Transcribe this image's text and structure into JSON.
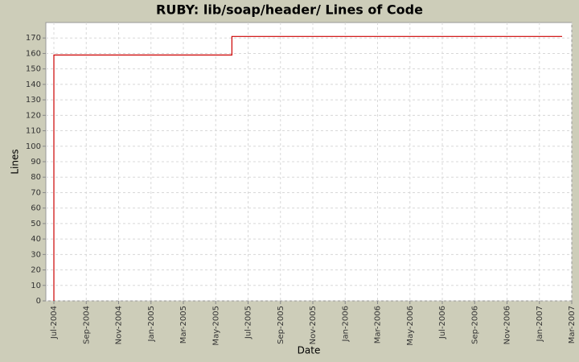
{
  "chart_data": {
    "type": "line",
    "title": "RUBY: lib/soap/header/ Lines of Code",
    "x_label": "Date",
    "y_label": "Lines",
    "step": true,
    "grid": true,
    "x": [
      "2004-07",
      "2004-07",
      "2005-06",
      "2007-02"
    ],
    "series": [
      {
        "name": "Lines",
        "color": "#cc0000",
        "values": [
          0,
          159,
          171,
          171
        ]
      }
    ],
    "xlim": [
      "2004-07",
      "2007-03"
    ],
    "xticks": [
      {
        "value": "2004-07",
        "label": "Jul-2004"
      },
      {
        "value": "2004-09",
        "label": "Sep-2004"
      },
      {
        "value": "2004-11",
        "label": "Nov-2004"
      },
      {
        "value": "2005-01",
        "label": "Jan-2005"
      },
      {
        "value": "2005-03",
        "label": "Mar-2005"
      },
      {
        "value": "2005-05",
        "label": "May-2005"
      },
      {
        "value": "2005-07",
        "label": "Jul-2005"
      },
      {
        "value": "2005-09",
        "label": "Sep-2005"
      },
      {
        "value": "2005-11",
        "label": "Nov-2005"
      },
      {
        "value": "2006-01",
        "label": "Jan-2006"
      },
      {
        "value": "2006-03",
        "label": "Mar-2006"
      },
      {
        "value": "2006-05",
        "label": "May-2006"
      },
      {
        "value": "2006-07",
        "label": "Jul-2006"
      },
      {
        "value": "2006-09",
        "label": "Sep-2006"
      },
      {
        "value": "2006-11",
        "label": "Nov-2006"
      },
      {
        "value": "2007-01",
        "label": "Jan-2007"
      },
      {
        "value": "2007-03",
        "label": "Mar-2007"
      }
    ],
    "ylim": [
      0,
      180
    ],
    "yticks": [
      0,
      10,
      20,
      30,
      40,
      50,
      60,
      70,
      80,
      90,
      100,
      110,
      120,
      130,
      140,
      150,
      160,
      170
    ]
  }
}
